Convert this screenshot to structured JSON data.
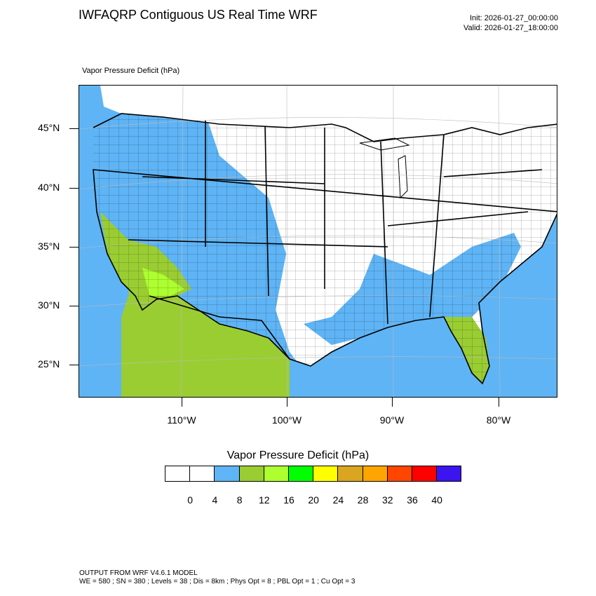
{
  "header": {
    "title": "IWFAQRP Contiguous US Real Time WRF",
    "init": "Init: 2026-01-27_00:00:00",
    "valid": "Valid: 2026-01-27_18:00:00"
  },
  "map": {
    "field_label": "Vapor Pressure Deficit   (hPa)",
    "lat_labels": [
      "45°N",
      "40°N",
      "35°N",
      "30°N",
      "25°N"
    ],
    "lon_labels": [
      "110°W",
      "100°W",
      "90°W",
      "80°W"
    ],
    "colors": {
      "ocean_blue": "#5eb4f5",
      "olive": "#9acd32",
      "lime": "#adff2f",
      "green": "#00ff00",
      "yellow": "#ffff00"
    }
  },
  "legend": {
    "title": "Vapor Pressure Deficit  (hPa)",
    "colors": [
      "#ffffff",
      "#ffffff",
      "#5eb4f5",
      "#9acd32",
      "#adff2f",
      "#00ff00",
      "#ffff00",
      "#daa520",
      "#ffa500",
      "#ff4500",
      "#ff0000",
      "#3c14f0"
    ],
    "labels": [
      "0",
      "4",
      "8",
      "12",
      "16",
      "20",
      "24",
      "28",
      "32",
      "36",
      "40"
    ]
  },
  "footer": {
    "line1": "OUTPUT FROM WRF V4.6.1 MODEL",
    "line2": "WE = 580 ; SN = 380 ; Levels = 38 ; Dis = 8km ; Phys Opt = 8 ; PBL Opt = 1 ; Cu Opt = 3"
  }
}
